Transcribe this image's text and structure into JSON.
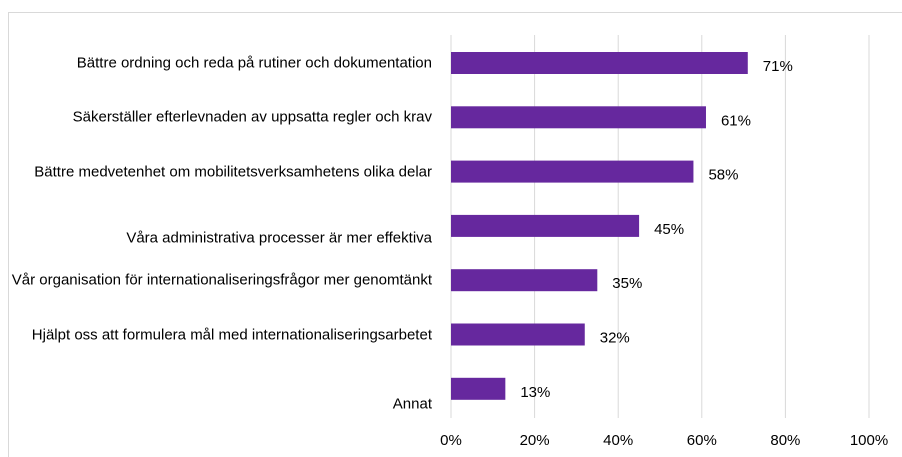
{
  "chart_data": {
    "type": "barh",
    "categories": [
      "Bättre ordning och reda på rutiner och dokumentation",
      "Säkerställer efterlevnaden av uppsatta regler och krav",
      "Bättre medvetenhet om mobilitetsverksamhetens olika delar",
      "Våra administrativa processer är mer effektiva",
      "Vår organisation för internationaliseringsfrågor mer genomtänkt",
      "Hjälpt oss att formulera mål med internationaliseringsarbetet",
      "Annat"
    ],
    "values": [
      71,
      61,
      58,
      45,
      35,
      32,
      13
    ],
    "value_labels": [
      "71%",
      "61%",
      "58%",
      "45%",
      "35%",
      "32%",
      "13%"
    ],
    "color": "#66289e",
    "xlim": [
      0,
      100
    ],
    "xticks": [
      {
        "value": 0,
        "label": "0%"
      },
      {
        "value": 20,
        "label": "20%"
      },
      {
        "value": 40,
        "label": "40%"
      },
      {
        "value": 60,
        "label": "60%"
      },
      {
        "value": 80,
        "label": "80%"
      },
      {
        "value": 100,
        "label": "100%"
      }
    ],
    "grid": true
  }
}
